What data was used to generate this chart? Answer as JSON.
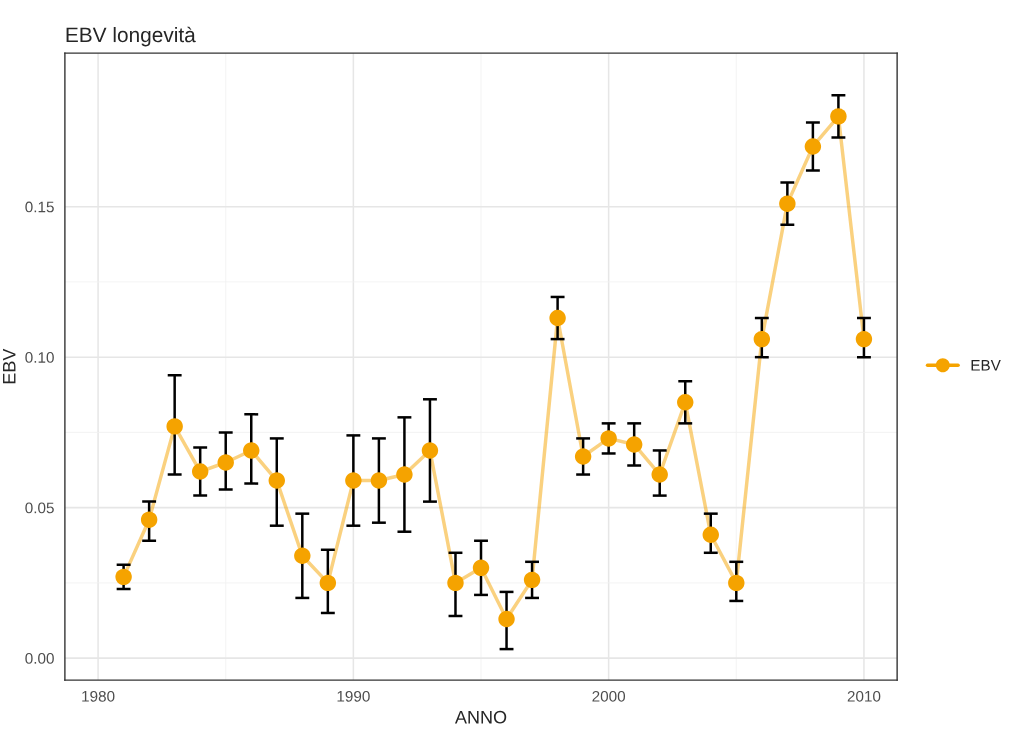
{
  "chart_data": {
    "type": "line",
    "title": "EBV longevità",
    "xlabel": "ANNO",
    "ylabel": "EBV",
    "x": [
      1981,
      1982,
      1983,
      1984,
      1985,
      1986,
      1987,
      1988,
      1989,
      1990,
      1991,
      1992,
      1993,
      1994,
      1995,
      1996,
      1997,
      1998,
      1999,
      2000,
      2001,
      2002,
      2003,
      2004,
      2005,
      2006,
      2007,
      2008,
      2009,
      2010
    ],
    "series": [
      {
        "name": "EBV",
        "color": "#f5a300",
        "values": [
          0.027,
          0.046,
          0.077,
          0.062,
          0.065,
          0.069,
          0.059,
          0.034,
          0.025,
          0.059,
          0.059,
          0.061,
          0.069,
          0.025,
          0.03,
          0.013,
          0.026,
          0.113,
          0.067,
          0.073,
          0.071,
          0.061,
          0.085,
          0.041,
          0.025,
          0.106,
          0.151,
          0.17,
          0.18,
          0.106
        ],
        "errors": [
          [
            0.023,
            0.031
          ],
          [
            0.039,
            0.052
          ],
          [
            0.061,
            0.094
          ],
          [
            0.054,
            0.07
          ],
          [
            0.056,
            0.075
          ],
          [
            0.058,
            0.081
          ],
          [
            0.044,
            0.073
          ],
          [
            0.02,
            0.048
          ],
          [
            0.015,
            0.036
          ],
          [
            0.044,
            0.074
          ],
          [
            0.045,
            0.073
          ],
          [
            0.042,
            0.08
          ],
          [
            0.052,
            0.086
          ],
          [
            0.014,
            0.035
          ],
          [
            0.021,
            0.039
          ],
          [
            0.003,
            0.022
          ],
          [
            0.02,
            0.032
          ],
          [
            0.106,
            0.12
          ],
          [
            0.061,
            0.073
          ],
          [
            0.068,
            0.078
          ],
          [
            0.064,
            0.078
          ],
          [
            0.054,
            0.069
          ],
          [
            0.078,
            0.092
          ],
          [
            0.035,
            0.048
          ],
          [
            0.019,
            0.032
          ],
          [
            0.1,
            0.113
          ],
          [
            0.144,
            0.158
          ],
          [
            0.162,
            0.178
          ],
          [
            0.173,
            0.187
          ],
          [
            0.1,
            0.113
          ]
        ]
      }
    ],
    "xlim": [
      1978.7,
      2011.3
    ],
    "ylim": [
      -0.0073,
      0.201
    ],
    "xticks": [
      1980,
      1990,
      2000,
      2010
    ],
    "yticks": [
      {
        "value": 0,
        "label": "0.00"
      },
      {
        "value": 0.05,
        "label": "0.05"
      },
      {
        "value": 0.1,
        "label": "0.10"
      },
      {
        "value": 0.15,
        "label": "0.15"
      }
    ],
    "grid": true,
    "legend": "right",
    "marker": "circle",
    "line_style": "solid"
  }
}
